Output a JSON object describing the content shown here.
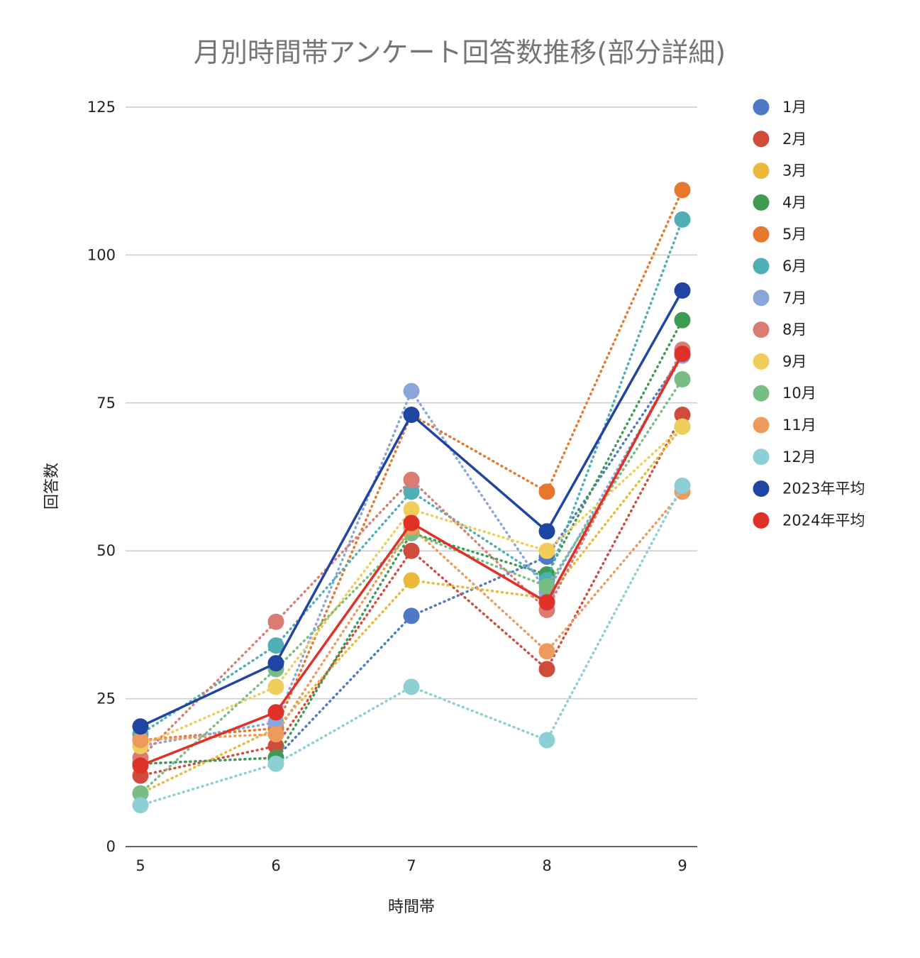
{
  "chart_data": {
    "type": "line",
    "title": "月別時間帯アンケート回答数推移(部分詳細)",
    "xlabel": "時間帯",
    "ylabel": "回答数",
    "x": [
      5,
      6,
      7,
      8,
      9
    ],
    "yticks": [
      0,
      25,
      50,
      75,
      100,
      125
    ],
    "ylim": [
      0,
      125
    ],
    "grid": true,
    "legend_position": "right",
    "series": [
      {
        "name": "1月",
        "color": "#4e79c6",
        "style": "dotted",
        "values": [
          14,
          15,
          39,
          49,
          83
        ]
      },
      {
        "name": "2月",
        "color": "#d14b3c",
        "style": "dotted",
        "values": [
          12,
          17,
          50,
          30,
          73
        ]
      },
      {
        "name": "3月",
        "color": "#ecb83a",
        "style": "dotted",
        "values": [
          9,
          20,
          45,
          42,
          71
        ]
      },
      {
        "name": "4月",
        "color": "#3f9b52",
        "style": "dotted",
        "values": [
          14,
          15,
          53,
          46,
          89
        ]
      },
      {
        "name": "5月",
        "color": "#e8772e",
        "style": "dotted",
        "values": [
          18,
          20,
          73,
          60,
          111
        ]
      },
      {
        "name": "6月",
        "color": "#50aeb6",
        "style": "dotted",
        "values": [
          19,
          34,
          60,
          45,
          106
        ]
      },
      {
        "name": "7月",
        "color": "#8aa5da",
        "style": "dotted",
        "values": [
          17,
          21,
          77,
          43,
          83
        ]
      },
      {
        "name": "8月",
        "color": "#db7c73",
        "style": "dotted",
        "values": [
          15,
          38,
          62,
          40,
          84
        ]
      },
      {
        "name": "9月",
        "color": "#f0cd5a",
        "style": "dotted",
        "values": [
          17,
          27,
          57,
          50,
          71
        ]
      },
      {
        "name": "10月",
        "color": "#77bd84",
        "style": "dotted",
        "values": [
          9,
          30,
          53,
          44,
          79
        ]
      },
      {
        "name": "11月",
        "color": "#ed9a5c",
        "style": "dotted",
        "values": [
          18,
          19,
          54,
          33,
          60
        ]
      },
      {
        "name": "12月",
        "color": "#8ccfd5",
        "style": "dotted",
        "values": [
          7,
          14,
          27,
          18,
          61
        ]
      },
      {
        "name": "2023年平均",
        "color": "#1f45a3",
        "style": "solid",
        "values": [
          20.3,
          31,
          73,
          53.3,
          94
        ]
      },
      {
        "name": "2024年平均",
        "color": "#e03128",
        "style": "solid",
        "values": [
          13.7,
          22.7,
          54.7,
          41.3,
          83.3
        ]
      }
    ]
  }
}
